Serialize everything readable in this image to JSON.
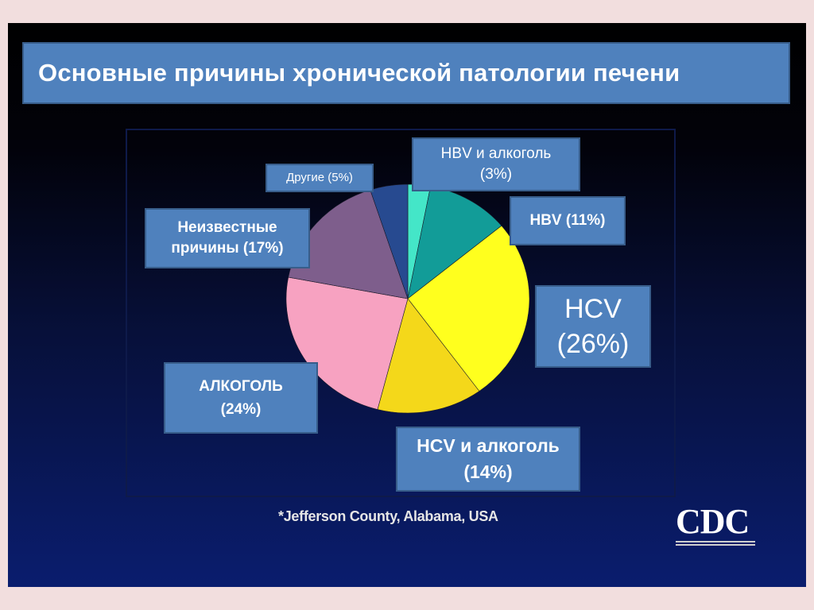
{
  "title": "Основные причины хронической патологии печени",
  "chart_data": {
    "type": "pie",
    "title": "Основные причины хронической патологии печени",
    "slices": [
      {
        "label_lines": [
          "HBV и алкоголь",
          "(3%)"
        ],
        "value": 3,
        "color": "#44e6c8"
      },
      {
        "label_lines": [
          "HBV (11%)"
        ],
        "value": 11,
        "color": "#129c98"
      },
      {
        "label_lines": [
          "HCV",
          "(26%)"
        ],
        "value": 26,
        "color": "#ffff1e"
      },
      {
        "label_lines": [
          "HCV и алкоголь",
          "(14%)"
        ],
        "value": 14,
        "color": "#f4d81a"
      },
      {
        "label_lines": [
          "АЛКОГОЛЬ",
          "(24%)"
        ],
        "value": 24,
        "color": "#f7a2c1"
      },
      {
        "label_lines": [
          "Неизвестные",
          "причины (17%)"
        ],
        "value": 17,
        "color": "#7e5e8c"
      },
      {
        "label_lines": [
          "Другие (5%)"
        ],
        "value": 5,
        "color": "#274a90"
      }
    ]
  },
  "footnote": "*Jefferson County, Alabama, USA",
  "logo": {
    "text": "CDC",
    "icon": "cdc-logo"
  }
}
